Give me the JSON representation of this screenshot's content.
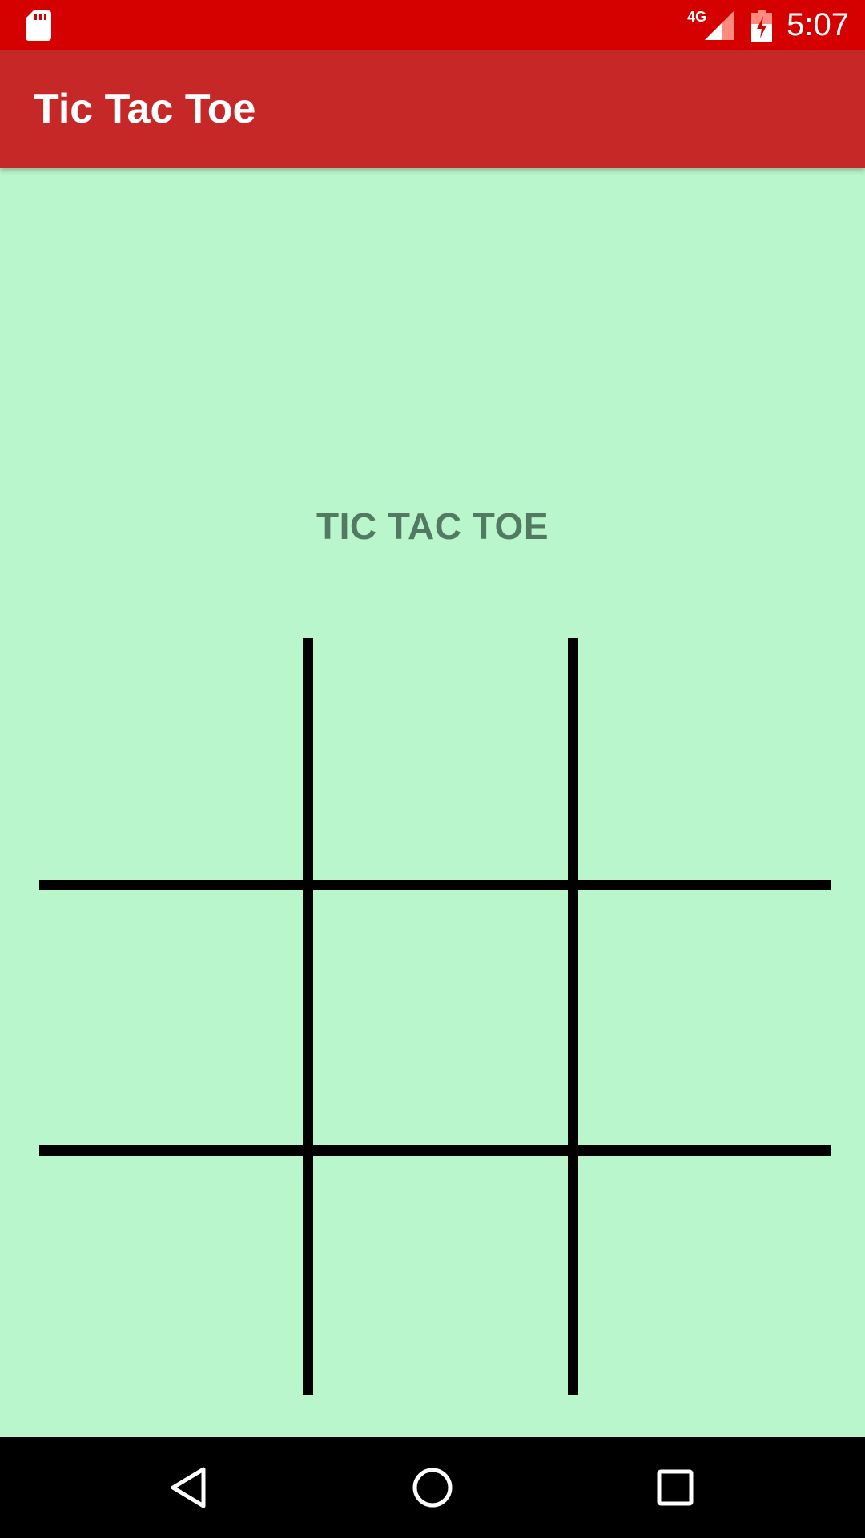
{
  "status_bar": {
    "network_type": "4G",
    "time": "5:07",
    "icons": [
      "sd-card-icon",
      "signal-icon",
      "battery-charging-icon"
    ]
  },
  "app_bar": {
    "title": "Tic Tac Toe"
  },
  "main": {
    "heading": "TIC TAC TOE",
    "board": {
      "rows": 3,
      "cols": 3,
      "cells": [
        "",
        "",
        "",
        "",
        "",
        "",
        "",
        "",
        ""
      ]
    }
  },
  "nav_bar": {
    "icons": [
      "back-icon",
      "home-icon",
      "recents-icon"
    ]
  },
  "colors": {
    "status_bar": "#d50000",
    "app_bar": "#c62828",
    "background": "#baf6cb",
    "heading": "#527a63",
    "grid_lines": "#000000"
  }
}
